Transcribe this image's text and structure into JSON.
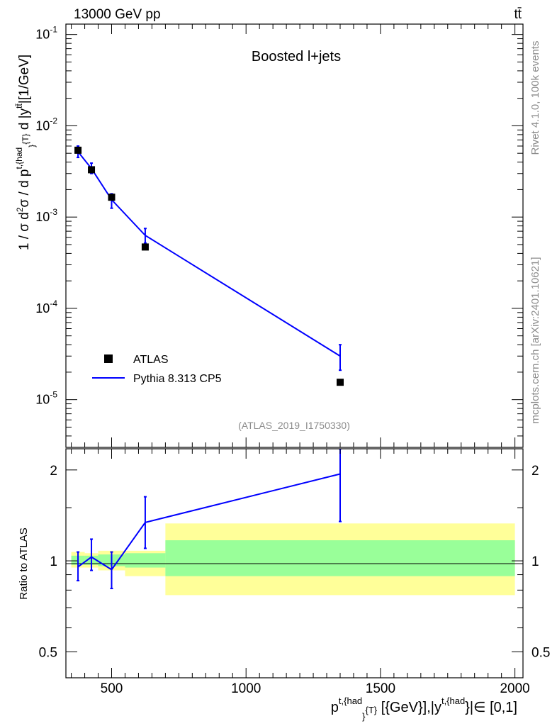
{
  "header": {
    "energy_label": "13000 GeV pp",
    "process_label": "tt̄"
  },
  "side_labels": {
    "rivet": "Rivet 4.1.0,  100k events",
    "mcplots": "mcplots.cern.ch [arXiv:2401.10621]"
  },
  "chart_data": [
    {
      "type": "scatter",
      "title": "Boosted l+jets",
      "analysis_id": "(ATLAS_2019_I1750330)",
      "ylabel": "1 / σ d²σ / d p^{t,{had}}_{T} d |y^{tt̄}| [1/GeV]",
      "yscale": "log",
      "ylim": [
        3e-06,
        0.13
      ],
      "xlim": [
        330,
        2030
      ],
      "y_ticks": [
        "10^{-5}",
        "10^{-4}",
        "10^{-3}",
        "10^{-2}",
        "10^{-1}"
      ],
      "legend_position": "bottom-left",
      "series": [
        {
          "name": "ATLAS",
          "style": "markers",
          "color": "#000000",
          "points": [
            {
              "x": 375,
              "y": 0.0054
            },
            {
              "x": 425,
              "y": 0.0033
            },
            {
              "x": 500,
              "y": 0.00165
            },
            {
              "x": 625,
              "y": 0.00047
            },
            {
              "x": 1350,
              "y": 1.55e-05
            }
          ]
        },
        {
          "name": "Pythia 8.313 CP5",
          "style": "line",
          "color": "#0000ff",
          "points": [
            {
              "x": 375,
              "y": 0.0052,
              "err_lo": 0.0045,
              "err_hi": 0.006
            },
            {
              "x": 425,
              "y": 0.0034,
              "err_lo": 0.003,
              "err_hi": 0.0039
            },
            {
              "x": 500,
              "y": 0.00155,
              "err_lo": 0.00125,
              "err_hi": 0.0018
            },
            {
              "x": 625,
              "y": 0.00063,
              "err_lo": 0.00052,
              "err_hi": 0.00075
            },
            {
              "x": 1350,
              "y": 3e-05,
              "err_lo": 2.1e-05,
              "err_hi": 4e-05
            }
          ]
        }
      ]
    },
    {
      "type": "line",
      "ylabel": "Ratio to ATLAS",
      "xlabel": "p^{t,{had}}_{T} [{GeV}],|y^{t,{had}}|∈ [0,1]",
      "yscale": "log",
      "ylim": [
        0.41,
        2.35
      ],
      "xlim": [
        330,
        2030
      ],
      "x_ticks": [
        "500",
        "1000",
        "1500",
        "2000"
      ],
      "y_ticks": [
        "0.5",
        "1",
        "2"
      ],
      "bands": [
        {
          "x0": 350,
          "x1": 400,
          "green": [
            0.97,
            1.04
          ],
          "yellow": [
            0.95,
            1.07
          ]
        },
        {
          "x0": 400,
          "x1": 450,
          "green": [
            0.97,
            1.04
          ],
          "yellow": [
            0.95,
            1.06
          ]
        },
        {
          "x0": 450,
          "x1": 550,
          "green": [
            0.96,
            1.05
          ],
          "yellow": [
            0.93,
            1.08
          ]
        },
        {
          "x0": 550,
          "x1": 700,
          "green": [
            0.95,
            1.06
          ],
          "yellow": [
            0.89,
            1.08
          ]
        },
        {
          "x0": 700,
          "x1": 2000,
          "green": [
            0.89,
            1.17
          ],
          "yellow": [
            0.77,
            1.33
          ]
        }
      ],
      "series": [
        {
          "name": "Pythia 8.313 CP5",
          "color": "#0000ff",
          "points": [
            {
              "x": 375,
              "y": 0.955,
              "err_lo": 0.86,
              "err_hi": 1.07
            },
            {
              "x": 425,
              "y": 1.03,
              "err_lo": 0.93,
              "err_hi": 1.18
            },
            {
              "x": 500,
              "y": 0.935,
              "err_lo": 0.81,
              "err_hi": 1.07
            },
            {
              "x": 625,
              "y": 1.34,
              "err_lo": 1.1,
              "err_hi": 1.63
            },
            {
              "x": 1350,
              "y": 1.94,
              "err_lo": 1.35,
              "err_hi": 2.35
            }
          ]
        }
      ]
    }
  ]
}
